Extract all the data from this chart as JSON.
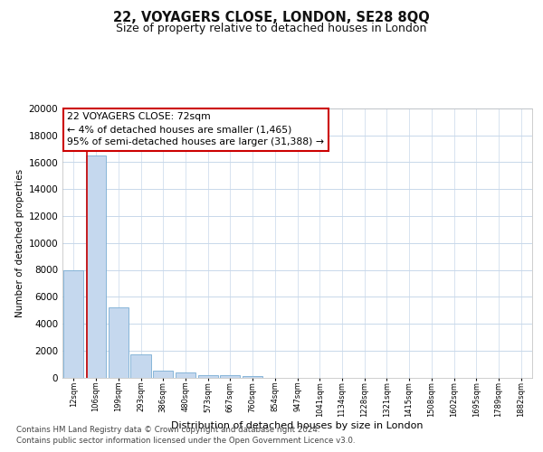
{
  "title_line1": "22, VOYAGERS CLOSE, LONDON, SE28 8QQ",
  "title_line2": "Size of property relative to detached houses in London",
  "xlabel": "Distribution of detached houses by size in London",
  "ylabel": "Number of detached properties",
  "categories": [
    "12sqm",
    "106sqm",
    "199sqm",
    "293sqm",
    "386sqm",
    "480sqm",
    "573sqm",
    "667sqm",
    "760sqm",
    "854sqm",
    "947sqm",
    "1041sqm",
    "1134sqm",
    "1228sqm",
    "1321sqm",
    "1415sqm",
    "1508sqm",
    "1602sqm",
    "1695sqm",
    "1789sqm",
    "1882sqm"
  ],
  "values": [
    8000,
    16500,
    5200,
    1700,
    530,
    350,
    200,
    150,
    100,
    0,
    0,
    0,
    0,
    0,
    0,
    0,
    0,
    0,
    0,
    0,
    0
  ],
  "bar_color": "#c5d8ee",
  "bar_edge_color": "#7aadd4",
  "annotation_title": "22 VOYAGERS CLOSE: 72sqm",
  "annotation_line2": "← 4% of detached houses are smaller (1,465)",
  "annotation_line3": "95% of semi-detached houses are larger (31,388) →",
  "red_line_x": 0.575,
  "ylim": [
    0,
    20000
  ],
  "yticks": [
    0,
    2000,
    4000,
    6000,
    8000,
    10000,
    12000,
    14000,
    16000,
    18000,
    20000
  ],
  "footer_line1": "Contains HM Land Registry data © Crown copyright and database right 2024.",
  "footer_line2": "Contains public sector information licensed under the Open Government Licence v3.0.",
  "bg_color": "#ffffff",
  "grid_color": "#c8d8ea",
  "annotation_box_color": "#ffffff",
  "annotation_box_edge": "#cc0000",
  "red_line_color": "#cc0000",
  "title1_fontsize": 10.5,
  "title2_fontsize": 9,
  "annot_fontsize": 7.8,
  "ylabel_fontsize": 7.5,
  "xlabel_fontsize": 8,
  "footer_fontsize": 6.2,
  "ytick_fontsize": 7.5,
  "xtick_fontsize": 6
}
